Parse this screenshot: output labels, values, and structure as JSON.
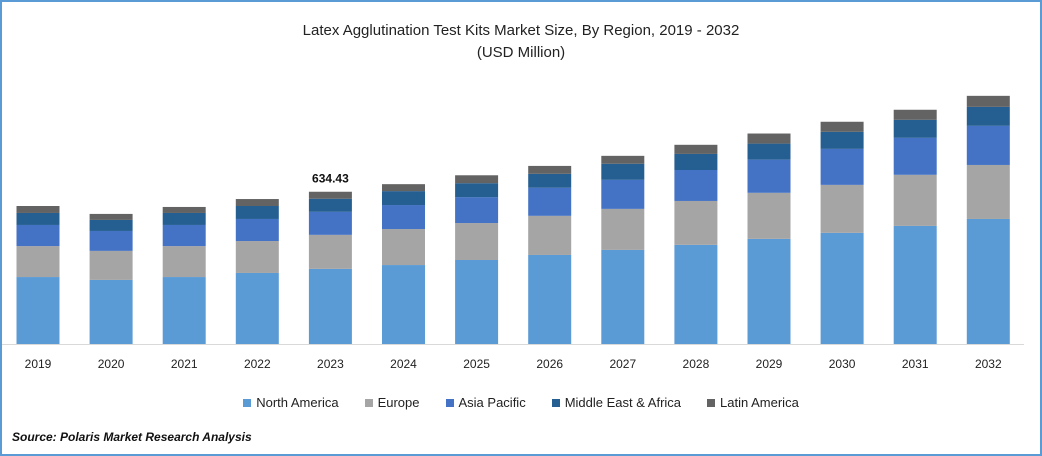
{
  "chart_data": {
    "type": "bar",
    "stacked": true,
    "title": "Latex Agglutination Test Kits Market Size, By Region, 2019 - 2032",
    "subtitle": "(USD Million)",
    "xlabel": "",
    "ylabel": "",
    "ylim": [
      0,
      1200
    ],
    "grid": false,
    "legend_position": "bottom",
    "categories": [
      "2019",
      "2020",
      "2021",
      "2022",
      "2023",
      "2024",
      "2025",
      "2026",
      "2027",
      "2028",
      "2029",
      "2030",
      "2031",
      "2032"
    ],
    "series": [
      {
        "name": "North America",
        "color": "#5B9BD5",
        "values": [
          279,
          267,
          279,
          296,
          313.0,
          329,
          350,
          371,
          392,
          413,
          438,
          463,
          492,
          521
        ]
      },
      {
        "name": "Europe",
        "color": "#A5A5A5",
        "values": [
          129,
          121,
          129,
          133,
          141.8,
          150,
          154,
          163,
          171,
          183,
          192,
          200,
          213,
          225
        ]
      },
      {
        "name": "Asia Pacific",
        "color": "#4472C4",
        "values": [
          88,
          83,
          88,
          92,
          95.9,
          100,
          108,
          117,
          121,
          129,
          138,
          150,
          154,
          163
        ]
      },
      {
        "name": "Middle East & Africa",
        "color": "#255E91",
        "values": [
          50,
          46,
          50,
          54,
          54.5,
          58,
          58,
          58,
          67,
          67,
          67,
          71,
          75,
          79
        ]
      },
      {
        "name": "Latin America",
        "color": "#636363",
        "values": [
          29,
          25,
          25,
          29,
          29.2,
          29,
          33,
          33,
          33,
          38,
          42,
          42,
          42,
          46
        ]
      }
    ],
    "annotations": [
      {
        "category": "2023",
        "label": "634.43"
      }
    ]
  },
  "source": "Source: Polaris  Market Research Analysis"
}
